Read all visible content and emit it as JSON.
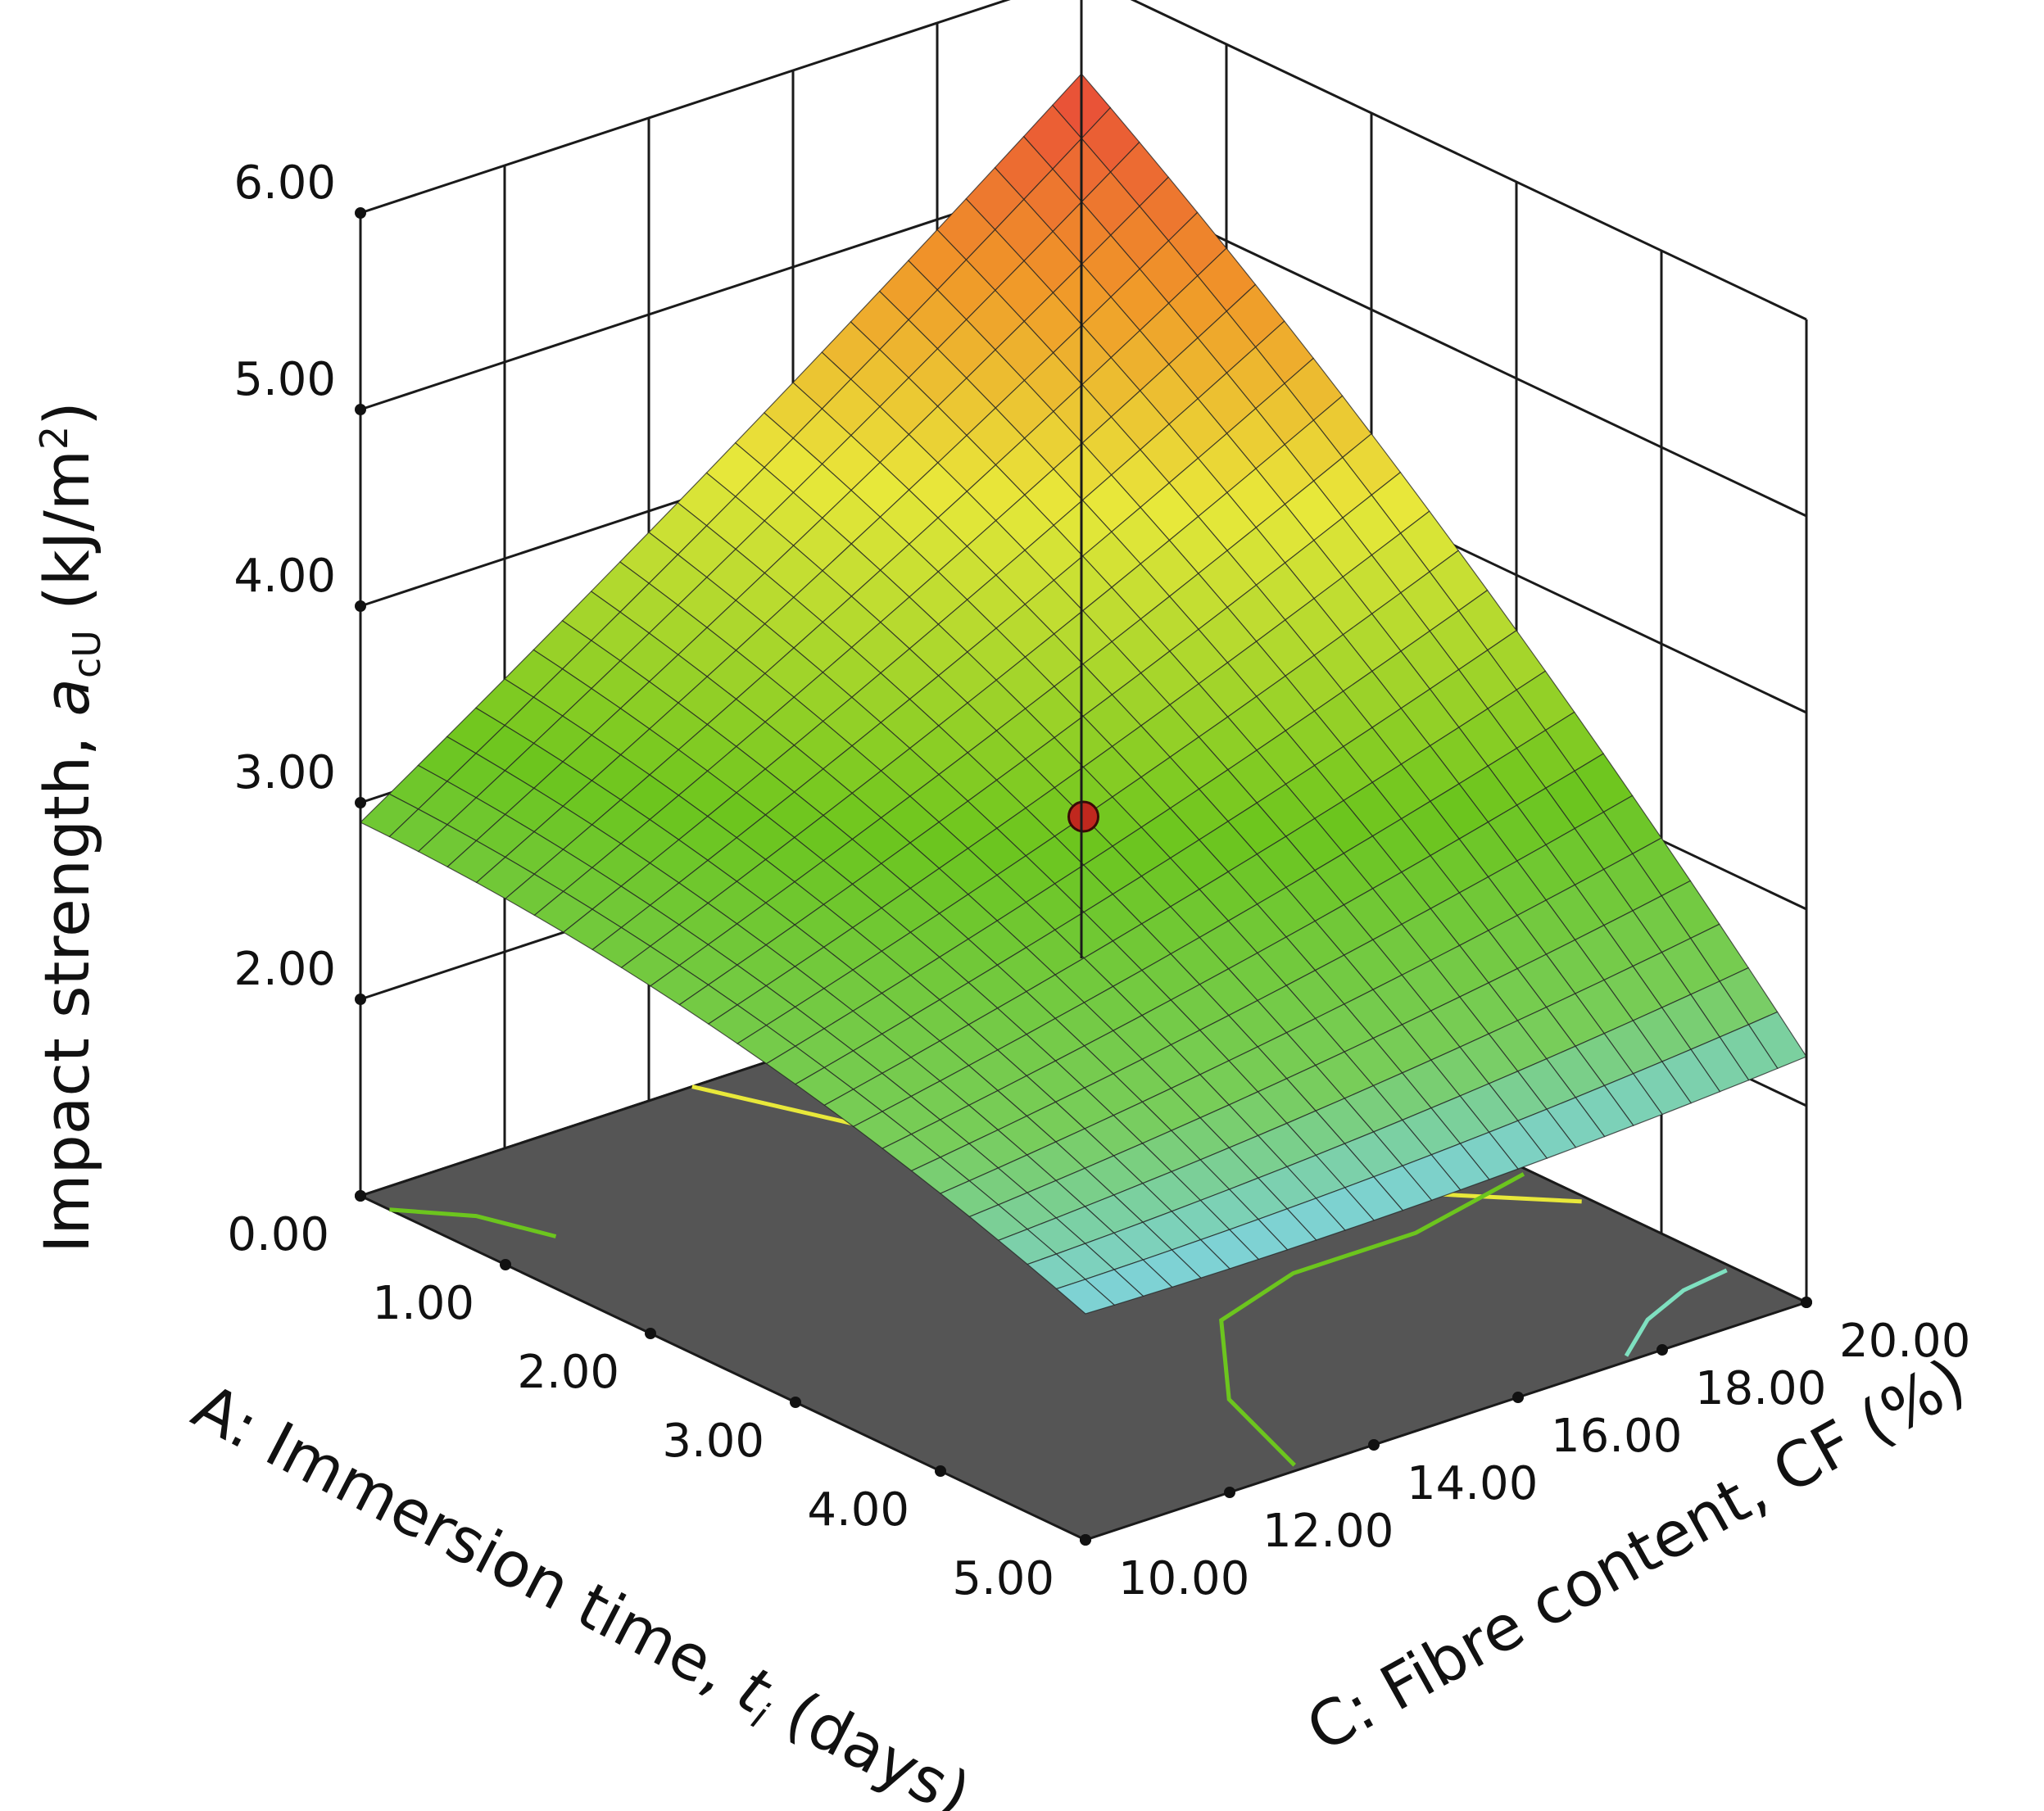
{
  "chart_data": {
    "type": "surface",
    "xaxis": {
      "label": "A: Immersion time, ",
      "label_var": "t",
      "label_sub": "i",
      "label_unit": " (days)",
      "ticks": [
        "0.00",
        "1.00",
        "2.00",
        "3.00",
        "4.00",
        "5.00"
      ],
      "range": [
        0,
        5
      ]
    },
    "yaxis": {
      "label": "C: Fibre content, CF (%)",
      "ticks": [
        "10.00",
        "12.00",
        "14.00",
        "16.00",
        "18.00",
        "20.00"
      ],
      "range": [
        10,
        20
      ]
    },
    "zaxis": {
      "label": "Impact strength, ",
      "label_var": "a",
      "label_sub": "cU",
      "label_unit": " (kJ/m",
      "label_sup": "2",
      "label_end": ")",
      "ticks": [
        "2.00",
        "3.00",
        "4.00",
        "5.00",
        "6.00"
      ],
      "range": [
        1,
        6
      ]
    },
    "surface_corners": [
      {
        "A": 0,
        "CF": 10,
        "value": 2.9
      },
      {
        "A": 5,
        "CF": 10,
        "value": 2.15
      },
      {
        "A": 0,
        "CF": 20,
        "value": 5.5
      },
      {
        "A": 5,
        "CF": 20,
        "value": 2.25
      }
    ],
    "design_point": {
      "A": 2.5,
      "CF": 15,
      "value": 3.2
    },
    "colors": {
      "low": "#7fd3f0",
      "mid": "#6cc51e",
      "midhigh": "#e8e83a",
      "high": "#e8463a",
      "floor": "#555555",
      "point": "#c0281e"
    }
  }
}
